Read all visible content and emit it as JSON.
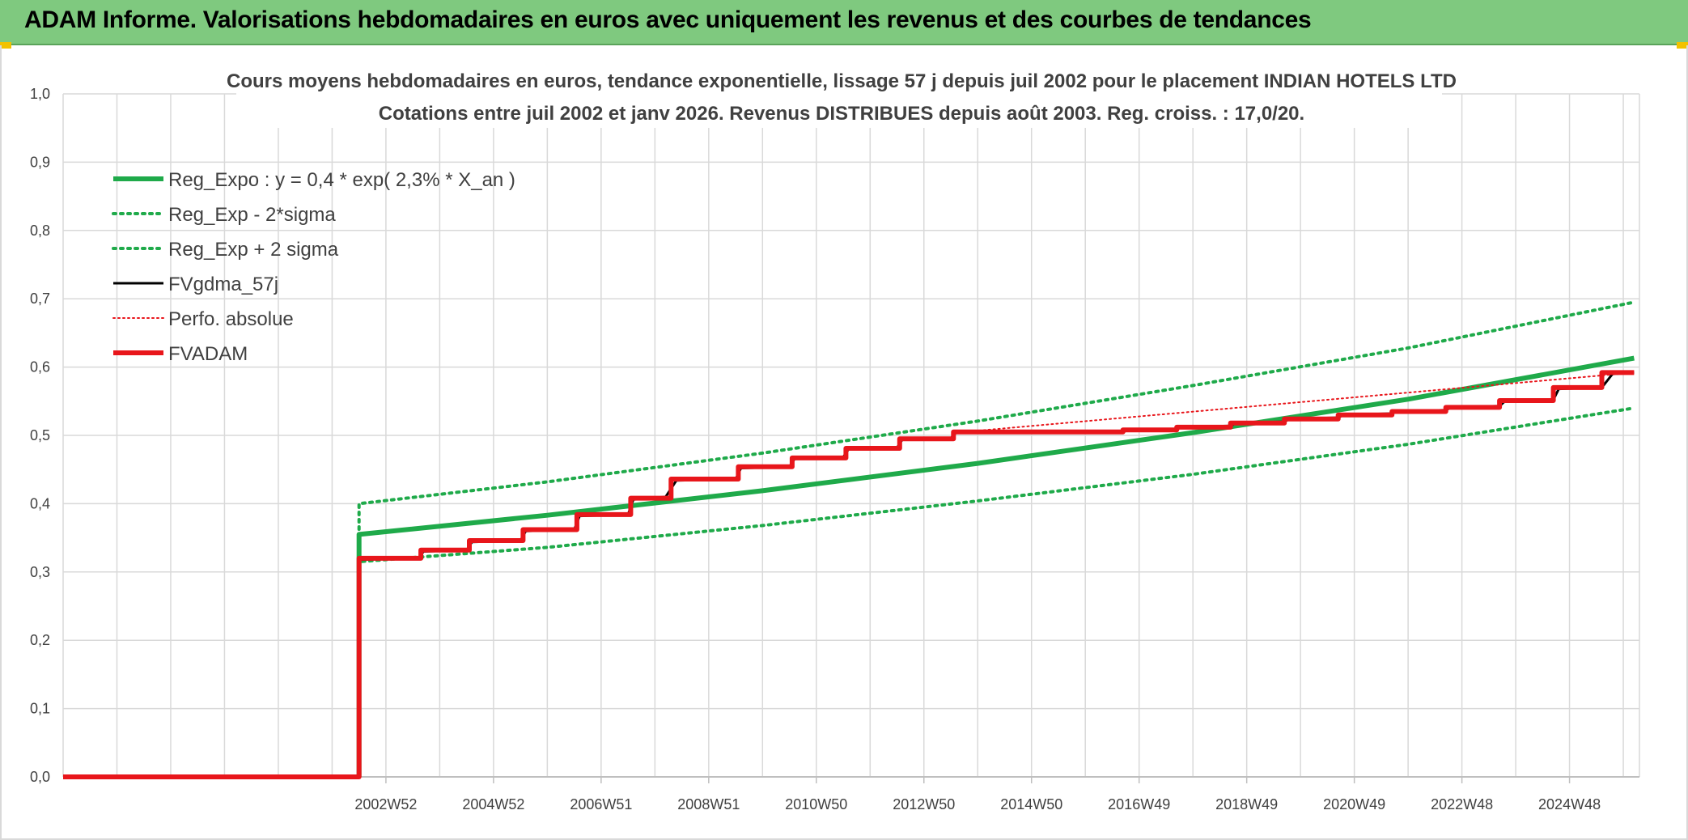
{
  "banner": {
    "title": "ADAM Informe. Valorisations hebdomadaires en euros avec uniquement les revenus et des courbes de tendances"
  },
  "colors": {
    "banner_bg": "#7fc97f",
    "green": "#1faa4a",
    "red": "#e8161b",
    "black": "#000000",
    "grid": "#d9d9d9"
  },
  "chart_data": {
    "type": "line",
    "title_line1": "Cours moyens hebdomadaires en euros, tendance exponentielle, lissage 57 j depuis juil 2002 pour le placement INDIAN HOTELS LTD",
    "title_line2": "Cotations entre juil 2002 et janv 2026. Revenus DISTRIBUES depuis août 2003. Reg. croiss. : 17,0/20.",
    "xlabel": "",
    "ylabel": "",
    "ylim": [
      0,
      1.0
    ],
    "xlim": [
      1997.0,
      2026.3
    ],
    "y_ticks": [
      "0,0",
      "0,1",
      "0,2",
      "0,3",
      "0,4",
      "0,5",
      "0,6",
      "0,7",
      "0,8",
      "0,9",
      "1,0"
    ],
    "x_ticks": [
      {
        "label": "2002W52",
        "x": 2003.0
      },
      {
        "label": "2004W52",
        "x": 2005.0
      },
      {
        "label": "2006W51",
        "x": 2007.0
      },
      {
        "label": "2008W51",
        "x": 2009.0
      },
      {
        "label": "2010W50",
        "x": 2011.0
      },
      {
        "label": "2012W50",
        "x": 2013.0
      },
      {
        "label": "2014W50",
        "x": 2015.0
      },
      {
        "label": "2016W49",
        "x": 2017.0
      },
      {
        "label": "2018W49",
        "x": 2019.0
      },
      {
        "label": "2020W49",
        "x": 2021.0
      },
      {
        "label": "2022W48",
        "x": 2023.0
      },
      {
        "label": "2024W48",
        "x": 2025.0
      }
    ],
    "grid": true,
    "legend_position": "top-left",
    "series": [
      {
        "name": "Reg_Expo : y = 0,4 * exp( 2,3% *  X_an )",
        "style": "solid-thick",
        "color": "#1faa4a",
        "points": [
          [
            2002.5,
            0.0
          ],
          [
            2002.5,
            0.355
          ],
          [
            2006.0,
            0.383
          ],
          [
            2010.0,
            0.419
          ],
          [
            2014.0,
            0.459
          ],
          [
            2018.0,
            0.504
          ],
          [
            2022.0,
            0.553
          ],
          [
            2026.2,
            0.613
          ]
        ]
      },
      {
        "name": "Reg_Exp - 2*sigma",
        "style": "dotted",
        "color": "#1faa4a",
        "points": [
          [
            2002.5,
            0.0
          ],
          [
            2002.5,
            0.315
          ],
          [
            2006.0,
            0.336
          ],
          [
            2010.0,
            0.368
          ],
          [
            2014.0,
            0.404
          ],
          [
            2018.0,
            0.443
          ],
          [
            2022.0,
            0.487
          ],
          [
            2026.2,
            0.54
          ]
        ]
      },
      {
        "name": "Reg_Exp + 2 sigma",
        "style": "dotted",
        "color": "#1faa4a",
        "points": [
          [
            2002.5,
            0.0
          ],
          [
            2002.5,
            0.4
          ],
          [
            2006.0,
            0.432
          ],
          [
            2010.0,
            0.474
          ],
          [
            2014.0,
            0.521
          ],
          [
            2018.0,
            0.573
          ],
          [
            2022.0,
            0.628
          ],
          [
            2026.2,
            0.695
          ]
        ]
      },
      {
        "name": "FVgdma_57j",
        "style": "solid",
        "color": "#000000",
        "points": [
          [
            1997.0,
            0.0
          ],
          [
            2002.5,
            0.0
          ],
          [
            2002.5,
            0.318
          ],
          [
            2003.6,
            0.32
          ],
          [
            2003.7,
            0.33
          ],
          [
            2004.5,
            0.332
          ],
          [
            2004.6,
            0.344
          ],
          [
            2005.5,
            0.346
          ],
          [
            2005.6,
            0.36
          ],
          [
            2006.5,
            0.362
          ],
          [
            2006.6,
            0.382
          ],
          [
            2007.5,
            0.384
          ],
          [
            2007.6,
            0.406
          ],
          [
            2008.2,
            0.41
          ],
          [
            2008.4,
            0.434
          ],
          [
            2009.5,
            0.436
          ],
          [
            2009.6,
            0.452
          ],
          [
            2010.5,
            0.454
          ],
          [
            2010.6,
            0.466
          ],
          [
            2011.5,
            0.468
          ],
          [
            2011.6,
            0.48
          ],
          [
            2012.5,
            0.482
          ],
          [
            2012.6,
            0.494
          ],
          [
            2013.5,
            0.496
          ],
          [
            2013.6,
            0.504
          ],
          [
            2016.7,
            0.505
          ],
          [
            2016.8,
            0.508
          ],
          [
            2017.7,
            0.509
          ],
          [
            2017.8,
            0.512
          ],
          [
            2018.7,
            0.514
          ],
          [
            2018.8,
            0.518
          ],
          [
            2019.7,
            0.52
          ],
          [
            2019.8,
            0.524
          ],
          [
            2020.7,
            0.526
          ],
          [
            2020.8,
            0.53
          ],
          [
            2021.7,
            0.532
          ],
          [
            2021.8,
            0.535
          ],
          [
            2022.7,
            0.537
          ],
          [
            2022.8,
            0.541
          ],
          [
            2023.7,
            0.543
          ],
          [
            2023.8,
            0.55
          ],
          [
            2024.7,
            0.552
          ],
          [
            2024.8,
            0.568
          ],
          [
            2025.6,
            0.57
          ],
          [
            2025.8,
            0.59
          ],
          [
            2026.2,
            0.592
          ]
        ]
      },
      {
        "name": "Perfo. absolue",
        "style": "dotted-thin",
        "color": "#e8161b",
        "points": [
          [
            2002.5,
            0.318
          ],
          [
            2003.6,
            0.32
          ],
          [
            2003.7,
            0.33
          ],
          [
            2004.5,
            0.332
          ],
          [
            2004.6,
            0.344
          ],
          [
            2005.5,
            0.346
          ],
          [
            2005.6,
            0.36
          ],
          [
            2006.5,
            0.362
          ],
          [
            2006.6,
            0.382
          ],
          [
            2007.5,
            0.384
          ],
          [
            2007.6,
            0.406
          ],
          [
            2008.2,
            0.41
          ],
          [
            2008.4,
            0.434
          ],
          [
            2009.5,
            0.436
          ],
          [
            2009.6,
            0.452
          ],
          [
            2010.5,
            0.454
          ],
          [
            2010.6,
            0.466
          ],
          [
            2011.5,
            0.468
          ],
          [
            2011.6,
            0.48
          ],
          [
            2012.5,
            0.482
          ],
          [
            2012.6,
            0.494
          ],
          [
            2013.5,
            0.496
          ],
          [
            2013.6,
            0.504
          ],
          [
            2026.2,
            0.592
          ]
        ]
      },
      {
        "name": "FVADAM",
        "style": "solid-thick",
        "color": "#e8161b",
        "points": [
          [
            1997.0,
            0.0
          ],
          [
            2002.5,
            0.0
          ],
          [
            2002.5,
            0.32
          ],
          [
            2003.65,
            0.32
          ],
          [
            2003.65,
            0.332
          ],
          [
            2004.55,
            0.332
          ],
          [
            2004.55,
            0.346
          ],
          [
            2005.55,
            0.346
          ],
          [
            2005.55,
            0.362
          ],
          [
            2006.55,
            0.362
          ],
          [
            2006.55,
            0.384
          ],
          [
            2007.55,
            0.384
          ],
          [
            2007.55,
            0.408
          ],
          [
            2008.3,
            0.408
          ],
          [
            2008.3,
            0.436
          ],
          [
            2009.55,
            0.436
          ],
          [
            2009.55,
            0.454
          ],
          [
            2010.55,
            0.454
          ],
          [
            2010.55,
            0.467
          ],
          [
            2011.55,
            0.467
          ],
          [
            2011.55,
            0.481
          ],
          [
            2012.55,
            0.481
          ],
          [
            2012.55,
            0.495
          ],
          [
            2013.55,
            0.495
          ],
          [
            2013.55,
            0.505
          ],
          [
            2016.7,
            0.505
          ],
          [
            2016.7,
            0.508
          ],
          [
            2017.7,
            0.508
          ],
          [
            2017.7,
            0.512
          ],
          [
            2018.7,
            0.512
          ],
          [
            2018.7,
            0.518
          ],
          [
            2019.7,
            0.518
          ],
          [
            2019.7,
            0.524
          ],
          [
            2020.7,
            0.524
          ],
          [
            2020.7,
            0.53
          ],
          [
            2021.7,
            0.53
          ],
          [
            2021.7,
            0.535
          ],
          [
            2022.7,
            0.535
          ],
          [
            2022.7,
            0.541
          ],
          [
            2023.7,
            0.541
          ],
          [
            2023.7,
            0.551
          ],
          [
            2024.7,
            0.551
          ],
          [
            2024.7,
            0.57
          ],
          [
            2025.6,
            0.57
          ],
          [
            2025.6,
            0.592
          ],
          [
            2026.2,
            0.592
          ]
        ]
      }
    ]
  }
}
